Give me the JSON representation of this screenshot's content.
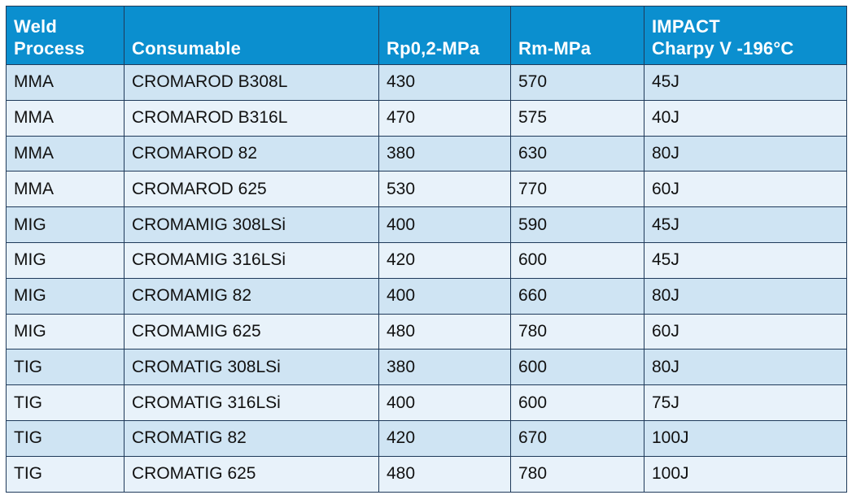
{
  "table": {
    "headers": [
      [
        "Weld",
        "Process"
      ],
      [
        "",
        "Consumable"
      ],
      [
        "",
        "Rp0,2-MPa"
      ],
      [
        "",
        "Rm-MPa"
      ],
      [
        "IMPACT",
        "Charpy V -196°C"
      ]
    ],
    "rows": [
      [
        "MMA",
        "CROMAROD B308L",
        "430",
        "570",
        "45J"
      ],
      [
        "MMA",
        "CROMAROD B316L",
        "470",
        "575",
        "40J"
      ],
      [
        "MMA",
        "CROMAROD 82",
        "380",
        "630",
        "80J"
      ],
      [
        "MMA",
        "CROMAROD 625",
        "530",
        "770",
        "60J"
      ],
      [
        "MIG",
        "CROMAMIG 308LSi",
        "400",
        "590",
        "45J"
      ],
      [
        "MIG",
        "CROMAMIG 316LSi",
        "420",
        "600",
        "45J"
      ],
      [
        "MIG",
        "CROMAMIG 82",
        "400",
        "660",
        "80J"
      ],
      [
        "MIG",
        "CROMAMIG 625",
        "480",
        "780",
        "60J"
      ],
      [
        "TIG",
        "CROMATIG 308LSi",
        "380",
        "600",
        "80J"
      ],
      [
        "TIG",
        "CROMATIG 316LSi",
        "400",
        "600",
        "75J"
      ],
      [
        "TIG",
        "CROMATIG 82",
        "420",
        "670",
        "100J"
      ],
      [
        "TIG",
        "CROMATIG 625",
        "480",
        "780",
        "100J"
      ]
    ]
  },
  "colors": {
    "header_bg": "#0b8fcf",
    "header_text": "#ffffff",
    "row_odd_bg": "#cfe4f3",
    "row_even_bg": "#e8f2fa",
    "border": "#1f3a5a"
  }
}
